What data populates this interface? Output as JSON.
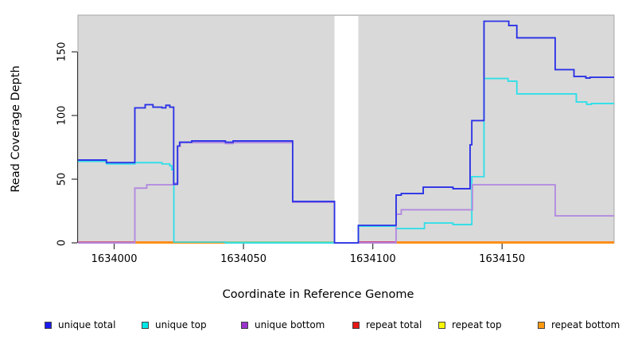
{
  "figure": {
    "y_axis_label": "Read Coverage Depth",
    "x_axis_label": "Coordinate in Reference Genome"
  },
  "chart_data": {
    "type": "line",
    "subtype": "step-coverage-plot",
    "title": "",
    "xlabel": "Coordinate in Reference Genome",
    "ylabel": "Read Coverage Depth",
    "xlim": [
      1633986,
      1634193.3
    ],
    "ylim": [
      0,
      178.8
    ],
    "x_ticks": [
      1634000,
      1634050,
      1634100,
      1634150
    ],
    "y_ticks": [
      0,
      50,
      100,
      150
    ],
    "grid": false,
    "plot_bg_color": "#d9d9d9",
    "plot_border_color": "#a6a6a6",
    "masked_region": {
      "x1": 1634085.2,
      "x2": 1634094.4,
      "color": "#ffffff"
    },
    "series": [
      {
        "name": "repeat total",
        "color": "#e51717",
        "points": [
          [
            1633986,
            0
          ],
          [
            1634193.3,
            0
          ]
        ]
      },
      {
        "name": "repeat top",
        "color": "#f7f700",
        "points": [
          [
            1633986,
            0
          ],
          [
            1634193.3,
            0
          ]
        ]
      },
      {
        "name": "repeat bottom",
        "color": "#ff8c1a",
        "points": [
          [
            1633986,
            0
          ],
          [
            1634193.3,
            0
          ]
        ]
      },
      {
        "name": "unique top",
        "color": "#30dfe8",
        "points": [
          [
            1633986,
            64
          ],
          [
            1633997,
            62
          ],
          [
            1634008,
            63
          ],
          [
            1634018.5,
            62
          ],
          [
            1634021.5,
            60.5
          ],
          [
            1634022.3,
            57.5
          ],
          [
            1634023.1,
            0.6
          ],
          [
            1634043,
            0
          ],
          [
            1634094.4,
            13
          ],
          [
            1634109,
            11.2
          ],
          [
            1634120,
            15.6
          ],
          [
            1634131,
            14.4
          ],
          [
            1634138.3,
            52
          ],
          [
            1634143,
            129
          ],
          [
            1634152.3,
            127
          ],
          [
            1634155.7,
            117
          ],
          [
            1634178.7,
            110.6
          ],
          [
            1634182.7,
            108.7
          ],
          [
            1634184.5,
            109.4
          ],
          [
            1634193.3,
            109.4
          ]
        ]
      },
      {
        "name": "unique bottom",
        "color": "#b28ae0",
        "points": [
          [
            1633986,
            0
          ],
          [
            1634008,
            43
          ],
          [
            1634012.6,
            45.6
          ],
          [
            1634023,
            47
          ],
          [
            1634024.6,
            76
          ],
          [
            1634025.6,
            78.7
          ],
          [
            1634043,
            78
          ],
          [
            1634046,
            78.7
          ],
          [
            1634069,
            31.9
          ],
          [
            1634085.2,
            0
          ],
          [
            1634109,
            22.5
          ],
          [
            1634111,
            26
          ],
          [
            1634138.5,
            45.6
          ],
          [
            1634170.5,
            21.2
          ],
          [
            1634193.3,
            21.2
          ]
        ]
      },
      {
        "name": "unique total",
        "color": "#2b32e6",
        "points": [
          [
            1633986,
            65
          ],
          [
            1633997,
            63
          ],
          [
            1634008,
            106
          ],
          [
            1634012,
            108.5
          ],
          [
            1634015,
            106.5
          ],
          [
            1634018.5,
            106
          ],
          [
            1634020,
            108
          ],
          [
            1634021.5,
            106.5
          ],
          [
            1634023,
            46
          ],
          [
            1634024.5,
            76
          ],
          [
            1634025.3,
            79
          ],
          [
            1634030,
            80
          ],
          [
            1634043,
            79
          ],
          [
            1634046,
            80
          ],
          [
            1634069,
            32.5
          ],
          [
            1634085.2,
            0
          ],
          [
            1634094.4,
            13.7
          ],
          [
            1634109,
            37.5
          ],
          [
            1634111,
            38.7
          ],
          [
            1634119.5,
            43.7
          ],
          [
            1634131,
            42.5
          ],
          [
            1634137.6,
            77
          ],
          [
            1634138.3,
            96
          ],
          [
            1634143,
            174
          ],
          [
            1634152.6,
            170.6
          ],
          [
            1634155.7,
            161
          ],
          [
            1634170.5,
            136
          ],
          [
            1634177.8,
            130.6
          ],
          [
            1634182.4,
            129.4
          ],
          [
            1634184,
            130
          ],
          [
            1634193.3,
            130
          ]
        ]
      }
    ],
    "baseline_overlap_segments": [
      {
        "x1": 1633986,
        "x2": 1634008,
        "color": "#d4608a"
      },
      {
        "x1": 1634008,
        "x2": 1634042.7,
        "color": "#ff8c1a"
      },
      {
        "x1": 1634042.7,
        "x2": 1634085.2,
        "color": "#8fd08f"
      },
      {
        "x1": 1634094.4,
        "x2": 1634109,
        "color": "#cc4488"
      },
      {
        "x1": 1634109,
        "x2": 1634193.3,
        "color": "#ff8c1a"
      }
    ],
    "legend": {
      "position": "bottom",
      "items": [
        {
          "label": "unique total",
          "color": "#1a1aee"
        },
        {
          "label": "unique top",
          "color": "#00e6e6"
        },
        {
          "label": "unique bottom",
          "color": "#9933cc"
        },
        {
          "label": "repeat total",
          "color": "#e51717"
        },
        {
          "label": "repeat top",
          "color": "#f7f700"
        },
        {
          "label": "repeat bottom",
          "color": "#ff9912"
        }
      ]
    }
  }
}
